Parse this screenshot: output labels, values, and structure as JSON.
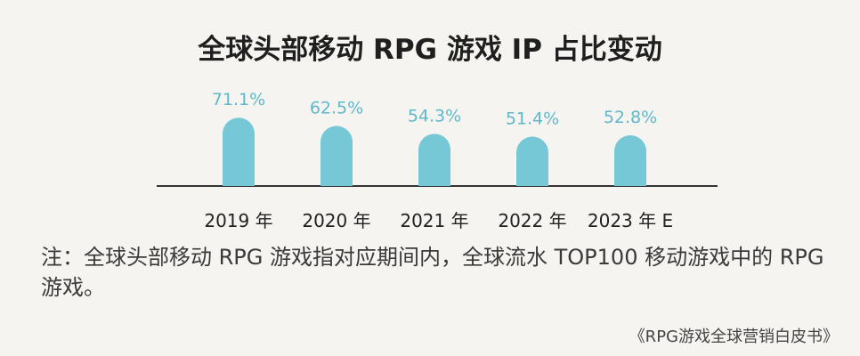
{
  "colors": {
    "bar": "#76c8d6",
    "value_label": "#5fb8c9",
    "baseline": "#333333",
    "background": "#f6f4f1"
  },
  "chart_data": {
    "type": "bar",
    "title": "全球头部移动 RPG 游戏 IP 占比变动",
    "categories": [
      "2019 年",
      "2020 年",
      "2021 年",
      "2022 年",
      "2023 年 E"
    ],
    "values": [
      71.1,
      62.5,
      54.3,
      51.4,
      52.8
    ],
    "value_labels": [
      "71.1%",
      "62.5%",
      "54.3%",
      "51.4%",
      "52.8%"
    ],
    "ylim": [
      0,
      100
    ],
    "grid": false
  },
  "note": "注：全球头部移动 RPG 游戏指对应期间内，全球流水 TOP100 移动游戏中的 RPG 游戏。",
  "source": "《RPG游戏全球营销白皮书》"
}
